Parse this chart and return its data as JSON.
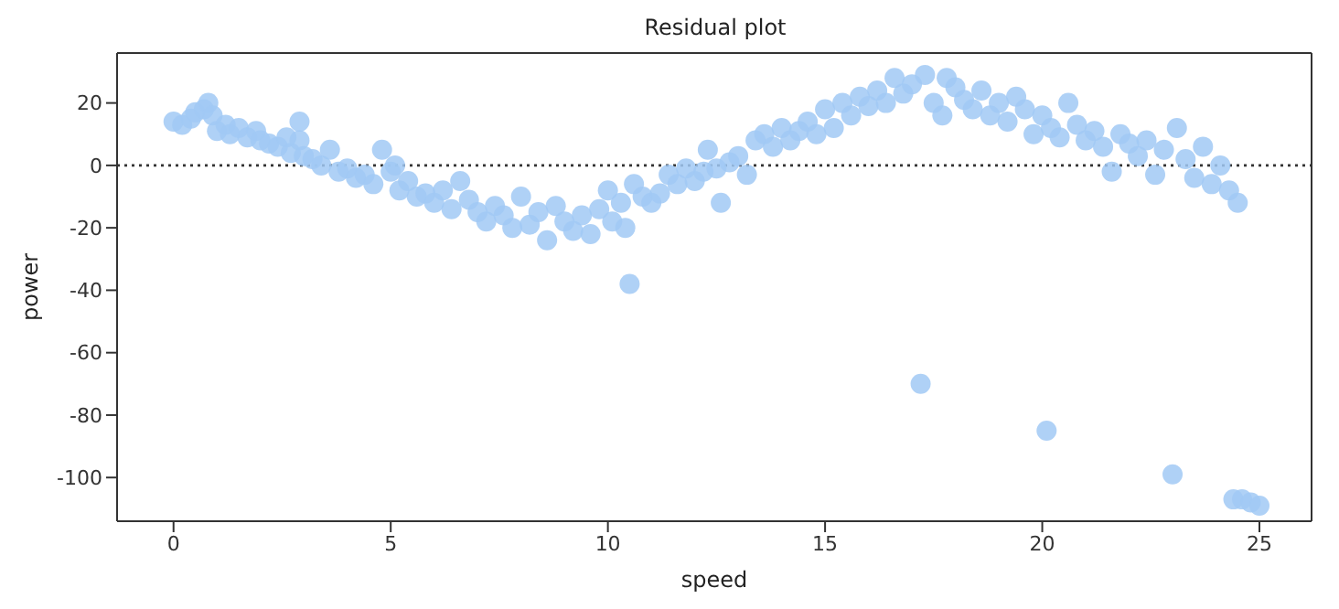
{
  "chart_data": {
    "type": "scatter",
    "title": "Residual plot",
    "xlabel": "speed",
    "ylabel": "power",
    "xlim": [
      -1.3,
      26.2
    ],
    "xticks": [
      0,
      5,
      10,
      15,
      20,
      25
    ],
    "ylim": [
      -114,
      36
    ],
    "yticks": [
      -100,
      -80,
      -60,
      -40,
      -20,
      0,
      20
    ],
    "grid": false,
    "marker": "circle",
    "ref_lines": [
      {
        "axis": "y",
        "value": 0,
        "line_style": "dotted",
        "color": "#333333"
      }
    ],
    "series": [
      {
        "color": "#a1c9f4",
        "x": [
          0,
          0.2,
          0.4,
          0.5,
          0.7,
          0.8,
          0.9,
          1.0,
          1.2,
          1.3,
          1.5,
          1.7,
          1.9,
          2.0,
          2.2,
          2.4,
          2.6,
          2.7,
          2.9,
          2.9,
          3.0,
          3.2,
          3.4,
          3.6,
          3.8,
          4.0,
          4.2,
          4.4,
          4.6,
          4.8,
          5.0,
          5.1,
          5.2,
          5.4,
          5.6,
          5.8,
          6.0,
          6.2,
          6.4,
          6.6,
          6.8,
          7.0,
          7.2,
          7.4,
          7.6,
          7.8,
          8.0,
          8.2,
          8.4,
          8.6,
          8.8,
          9.0,
          9.2,
          9.4,
          9.6,
          9.8,
          10.0,
          10.1,
          10.3,
          10.4,
          10.5,
          10.6,
          10.8,
          11.0,
          11.2,
          11.4,
          11.6,
          11.8,
          12.0,
          12.2,
          12.3,
          12.5,
          12.6,
          12.8,
          13.0,
          13.2,
          13.4,
          13.6,
          13.8,
          14.0,
          14.2,
          14.4,
          14.6,
          14.8,
          15.0,
          15.2,
          15.4,
          15.6,
          15.8,
          16.0,
          16.2,
          16.4,
          16.6,
          16.8,
          17.0,
          17.2,
          17.3,
          17.5,
          17.7,
          17.8,
          18.0,
          18.2,
          18.4,
          18.6,
          18.8,
          19.0,
          19.2,
          19.4,
          19.6,
          19.8,
          20.0,
          20.1,
          20.2,
          20.4,
          20.6,
          20.8,
          21.0,
          21.2,
          21.4,
          21.6,
          21.8,
          22.0,
          22.2,
          22.4,
          22.6,
          22.8,
          23.0,
          23.1,
          23.3,
          23.5,
          23.7,
          23.9,
          24.1,
          24.3,
          24.5,
          24.4,
          24.6,
          24.8,
          25.0
        ],
        "values": [
          14,
          13,
          15,
          17,
          18,
          20,
          16,
          11,
          13,
          10,
          12,
          9,
          11,
          8,
          7,
          6,
          9,
          4,
          14,
          8,
          3,
          2,
          0,
          5,
          -2,
          -1,
          -4,
          -3,
          -6,
          5,
          -2,
          0,
          -8,
          -5,
          -10,
          -9,
          -12,
          -8,
          -14,
          -5,
          -11,
          -15,
          -18,
          -13,
          -16,
          -20,
          -10,
          -19,
          -15,
          -24,
          -13,
          -18,
          -21,
          -16,
          -22,
          -14,
          -8,
          -18,
          -12,
          -20,
          -38,
          -6,
          -10,
          -12,
          -9,
          -3,
          -6,
          -1,
          -5,
          -2,
          5,
          -1,
          -12,
          1,
          3,
          -3,
          8,
          10,
          6,
          12,
          8,
          11,
          14,
          10,
          18,
          12,
          20,
          16,
          22,
          19,
          24,
          20,
          28,
          23,
          26,
          -70,
          29,
          20,
          16,
          28,
          25,
          21,
          18,
          24,
          16,
          20,
          14,
          22,
          18,
          10,
          16,
          -85,
          12,
          9,
          20,
          13,
          8,
          11,
          6,
          -2,
          10,
          7,
          3,
          8,
          -3,
          5,
          -99,
          12,
          2,
          -4,
          6,
          -6,
          0,
          -8,
          -12,
          -107,
          -107,
          -108,
          -109
        ]
      }
    ]
  }
}
